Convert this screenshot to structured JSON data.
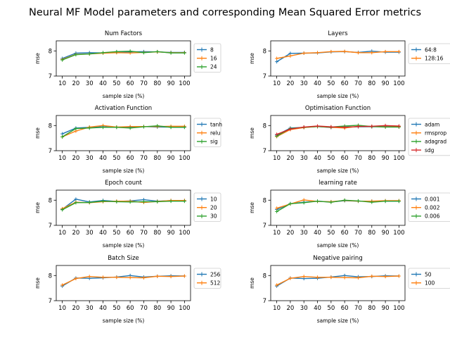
{
  "figure": {
    "title": "Neural MF Model parameters and corresponding Mean Squared Error metrics"
  },
  "colors": {
    "c0": "#1f77b4",
    "c1": "#ff7f0e",
    "c2": "#2ca02c",
    "c3": "#d62728"
  },
  "chart_data": [
    {
      "type": "line",
      "title": "Num Factors",
      "xlabel": "sample size (%)",
      "ylabel": "mse",
      "ylim": [
        7,
        8.4
      ],
      "yticks": [
        7,
        8
      ],
      "categories": [
        "10",
        "20",
        "30",
        "40",
        "50",
        "60",
        "70",
        "80",
        "90",
        "100"
      ],
      "legend": "right",
      "series": [
        {
          "name": "8",
          "values": [
            7.7,
            7.91,
            7.93,
            7.92,
            7.95,
            7.96,
            7.97,
            7.96,
            7.94,
            7.94
          ]
        },
        {
          "name": "16",
          "values": [
            7.66,
            7.86,
            7.88,
            7.91,
            7.93,
            7.92,
            7.94,
            7.96,
            7.93,
            7.93
          ]
        },
        {
          "name": "24",
          "values": [
            7.64,
            7.85,
            7.88,
            7.93,
            7.97,
            7.99,
            7.93,
            7.97,
            7.92,
            7.92
          ]
        }
      ]
    },
    {
      "type": "line",
      "title": "Layers",
      "xlabel": "sample size (%)",
      "ylabel": "mse",
      "ylim": [
        7,
        8.4
      ],
      "yticks": [
        7,
        8
      ],
      "categories": [
        "10",
        "20",
        "30",
        "40",
        "50",
        "60",
        "70",
        "80",
        "90",
        "100"
      ],
      "legend": "right",
      "series": [
        {
          "name": "64:8",
          "values": [
            7.57,
            7.9,
            7.91,
            7.92,
            7.96,
            7.97,
            7.94,
            7.99,
            7.95,
            7.95
          ]
        },
        {
          "name": "128:16",
          "values": [
            7.7,
            7.8,
            7.91,
            7.93,
            7.97,
            7.98,
            7.93,
            7.93,
            7.97,
            7.97
          ]
        }
      ]
    },
    {
      "type": "line",
      "title": "Activation Function",
      "xlabel": "sample size (%)",
      "ylabel": "mse",
      "ylim": [
        7,
        8.4
      ],
      "yticks": [
        7,
        8
      ],
      "categories": [
        "10",
        "20",
        "30",
        "40",
        "50",
        "60",
        "70",
        "80",
        "90",
        "100"
      ],
      "legend": "right",
      "series": [
        {
          "name": "tanh",
          "values": [
            7.67,
            7.9,
            7.93,
            7.95,
            7.93,
            7.94,
            7.96,
            7.94,
            7.94,
            7.94
          ]
        },
        {
          "name": "relu",
          "values": [
            7.55,
            7.78,
            7.94,
            8.0,
            7.94,
            7.96,
            7.96,
            7.96,
            7.97,
            7.97
          ]
        },
        {
          "name": "sig",
          "values": [
            7.55,
            7.88,
            7.9,
            7.93,
            7.93,
            7.9,
            7.95,
            7.99,
            7.93,
            7.93
          ]
        }
      ]
    },
    {
      "type": "line",
      "title": "Optimisation Function",
      "xlabel": "sample size (%)",
      "ylabel": "mse",
      "ylim": [
        7,
        8.4
      ],
      "yticks": [
        7,
        8
      ],
      "categories": [
        "10",
        "20",
        "30",
        "40",
        "50",
        "60",
        "70",
        "80",
        "90",
        "100"
      ],
      "legend": "right",
      "series": [
        {
          "name": "adam",
          "values": [
            7.62,
            7.9,
            7.93,
            7.96,
            7.92,
            7.94,
            7.95,
            7.95,
            7.96,
            7.96
          ]
        },
        {
          "name": "rmsprop",
          "values": [
            7.56,
            7.84,
            7.92,
            7.96,
            7.93,
            7.9,
            7.97,
            7.96,
            7.95,
            7.95
          ]
        },
        {
          "name": "adagrad",
          "values": [
            7.58,
            7.88,
            7.93,
            7.96,
            7.94,
            7.98,
            8.01,
            7.96,
            7.94,
            7.94
          ]
        },
        {
          "name": "sdg",
          "values": [
            7.65,
            7.86,
            7.94,
            7.98,
            7.95,
            7.93,
            7.96,
            7.97,
            8.0,
            7.98
          ]
        }
      ]
    },
    {
      "type": "line",
      "title": "Epoch count",
      "xlabel": "sample size (%)",
      "ylabel": "mse",
      "ylim": [
        7,
        8.4
      ],
      "yticks": [
        7,
        8
      ],
      "categories": [
        "10",
        "20",
        "30",
        "40",
        "50",
        "60",
        "70",
        "80",
        "90",
        "100"
      ],
      "legend": "right",
      "series": [
        {
          "name": "10",
          "values": [
            7.64,
            8.04,
            7.93,
            7.99,
            7.95,
            7.97,
            8.02,
            7.96,
            7.98,
            7.98
          ]
        },
        {
          "name": "20",
          "values": [
            7.66,
            7.92,
            7.9,
            7.94,
            7.96,
            7.96,
            7.91,
            7.95,
            7.99,
            7.99
          ]
        },
        {
          "name": "30",
          "values": [
            7.62,
            7.9,
            7.91,
            7.96,
            7.94,
            7.93,
            7.94,
            7.94,
            7.96,
            7.96
          ]
        }
      ]
    },
    {
      "type": "line",
      "title": "learning rate",
      "xlabel": "sample size (%)",
      "ylabel": "mse",
      "ylim": [
        7,
        8.4
      ],
      "yticks": [
        7,
        8
      ],
      "categories": [
        "10",
        "20",
        "30",
        "40",
        "50",
        "60",
        "70",
        "80",
        "90",
        "100"
      ],
      "legend": "right",
      "series": [
        {
          "name": "0.001",
          "values": [
            7.63,
            7.86,
            7.92,
            7.96,
            7.93,
            7.98,
            7.96,
            7.96,
            7.96,
            7.96
          ]
        },
        {
          "name": "0.002",
          "values": [
            7.68,
            7.85,
            8.01,
            7.95,
            7.94,
            7.99,
            7.96,
            7.96,
            7.98,
            7.98
          ]
        },
        {
          "name": "0.006",
          "values": [
            7.55,
            7.86,
            7.9,
            7.96,
            7.92,
            8.0,
            7.97,
            7.92,
            7.96,
            7.96
          ]
        }
      ]
    },
    {
      "type": "line",
      "title": "Batch Size",
      "xlabel": "sample size (%)",
      "ylabel": "mse",
      "ylim": [
        7,
        8.4
      ],
      "yticks": [
        7,
        8
      ],
      "categories": [
        "10",
        "20",
        "30",
        "40",
        "50",
        "60",
        "70",
        "80",
        "90",
        "100"
      ],
      "legend": "right",
      "series": [
        {
          "name": "256",
          "values": [
            7.58,
            7.9,
            7.89,
            7.91,
            7.94,
            8.0,
            7.94,
            7.97,
            7.99,
            7.98
          ]
        },
        {
          "name": "512",
          "values": [
            7.62,
            7.88,
            7.96,
            7.93,
            7.93,
            7.92,
            7.91,
            7.97,
            7.96,
            7.98
          ]
        }
      ]
    },
    {
      "type": "line",
      "title": "Negative pairing",
      "xlabel": "sample size (%)",
      "ylabel": "mse",
      "ylim": [
        7,
        8.4
      ],
      "yticks": [
        7,
        8
      ],
      "categories": [
        "10",
        "20",
        "30",
        "40",
        "50",
        "60",
        "70",
        "80",
        "90",
        "100"
      ],
      "legend": "right",
      "series": [
        {
          "name": "50",
          "values": [
            7.58,
            7.9,
            7.88,
            7.89,
            7.94,
            8.0,
            7.95,
            7.96,
            7.99,
            7.98
          ]
        },
        {
          "name": "100",
          "values": [
            7.62,
            7.89,
            7.96,
            7.93,
            7.93,
            7.92,
            7.91,
            7.97,
            7.96,
            7.98
          ]
        }
      ]
    }
  ]
}
